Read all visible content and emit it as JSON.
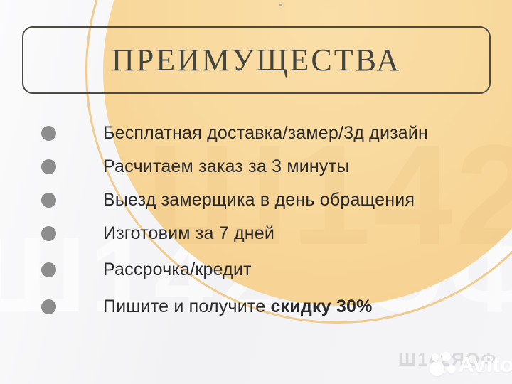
{
  "theme": {
    "circle": "#f8d79a",
    "arc": "#eec37c",
    "frame": "#4b4b44",
    "title": "#45453f",
    "text": "#2a2a2c",
    "bullet": "#8d8d8d"
  },
  "decor": {
    "watermark_text": "Ш142ЯОФ"
  },
  "header": {
    "title": "ПРЕИМУЩЕСТВА"
  },
  "list": {
    "items": [
      {
        "text": "Бесплатная доставка/замер/3д дизайн"
      },
      {
        "text": "Расчитаем заказ за 3 минуты"
      },
      {
        "text": "Выезд замерщика в день обращения"
      },
      {
        "text": "Изготовим за 7 дней"
      },
      {
        "text": "Рассрочка/кредит"
      },
      {
        "text": "Пишите и получите ",
        "bold_text": "скидку 30%"
      }
    ]
  },
  "watermark": {
    "brand": "Avito"
  }
}
